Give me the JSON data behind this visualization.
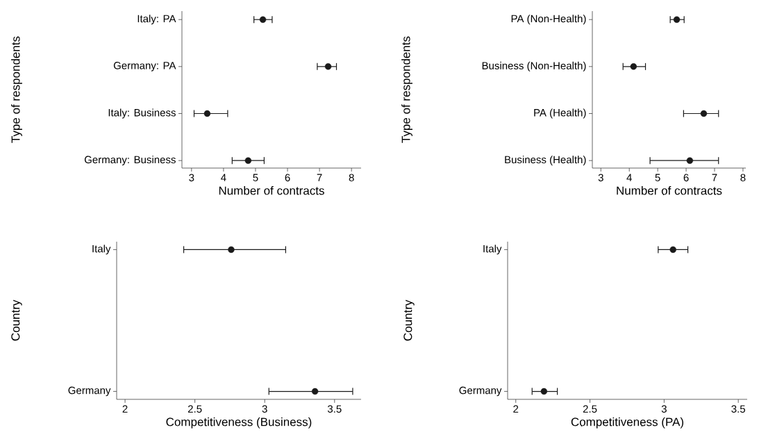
{
  "chart_data": [
    {
      "type": "scatter",
      "orientation": "horizontal",
      "categories": [
        "Italy: PA",
        "Germany: PA",
        "Italy: Business",
        "Germany: Business"
      ],
      "values": [
        5.23,
        7.27,
        3.49,
        4.77
      ],
      "errors": [
        [
          4.95,
          5.52
        ],
        [
          6.93,
          7.53
        ],
        [
          3.08,
          4.13
        ],
        [
          4.27,
          5.27
        ]
      ],
      "color": "#1a1a1a",
      "marker": "circle",
      "xlim": [
        2.7,
        8.3
      ],
      "xticks": [
        3,
        4,
        5,
        6,
        7,
        8
      ],
      "xlabel": "Number of contracts",
      "ylabel": "Type of respondents"
    },
    {
      "type": "scatter",
      "orientation": "horizontal",
      "categories": [
        "PA (Non-Health)",
        "Business (Non-Health)",
        "PA (Health)",
        "Business (Health)"
      ],
      "values": [
        5.67,
        4.15,
        6.62,
        6.13
      ],
      "errors": [
        [
          5.44,
          5.93
        ],
        [
          3.78,
          4.57
        ],
        [
          5.91,
          7.14
        ],
        [
          4.73,
          7.14
        ]
      ],
      "color": "#1a1a1a",
      "marker": "circle",
      "xlim": [
        2.7,
        8.1
      ],
      "xticks": [
        3,
        4,
        5,
        6,
        7,
        8
      ],
      "xlabel": "Number of contracts",
      "ylabel": "Type of respondents"
    },
    {
      "type": "scatter",
      "orientation": "horizontal",
      "categories": [
        "Italy",
        "Germany"
      ],
      "values": [
        2.76,
        3.36
      ],
      "errors": [
        [
          2.42,
          3.15
        ],
        [
          3.03,
          3.63
        ]
      ],
      "color": "#1a1a1a",
      "marker": "circle",
      "xlim": [
        1.94,
        3.69
      ],
      "xticks": [
        2,
        2.5,
        3,
        3.5
      ],
      "xlabel": "Competitiveness (Business)",
      "ylabel": "Country"
    },
    {
      "type": "scatter",
      "orientation": "horizontal",
      "categories": [
        "Italy",
        "Germany"
      ],
      "values": [
        3.06,
        2.19
      ],
      "errors": [
        [
          2.96,
          3.16
        ],
        [
          2.11,
          2.28
        ]
      ],
      "color": "#1a1a1a",
      "marker": "circle",
      "xlim": [
        1.945,
        3.56
      ],
      "xticks": [
        2,
        2.5,
        3,
        3.5
      ],
      "xlabel": "Competitiveness (PA)",
      "ylabel": "Country"
    }
  ]
}
